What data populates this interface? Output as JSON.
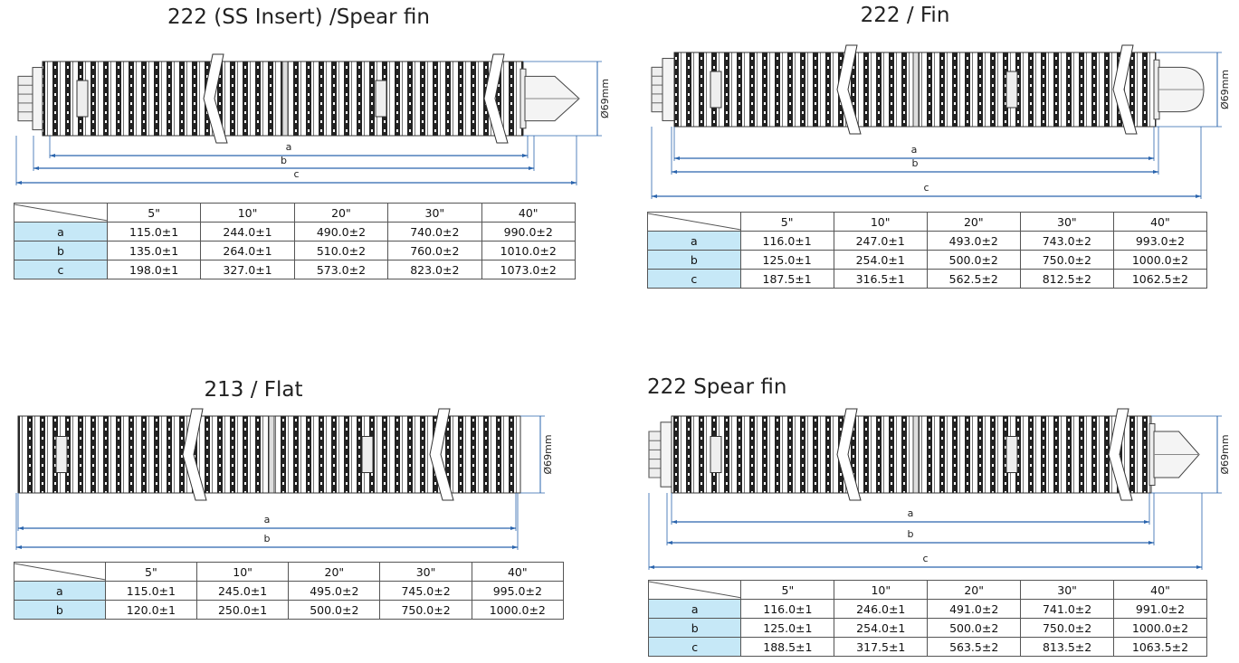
{
  "colors": {
    "dimension_line": "#2a64ad",
    "header_fill": "#c6e8f7",
    "border": "#555555"
  },
  "diameter_label": "Ø69mm",
  "panels": [
    {
      "title": "222 (SS Insert) /Spear fin",
      "end_type": "spear",
      "dimension_labels": [
        "a",
        "b",
        "c"
      ],
      "table": {
        "columns": [
          "5\"",
          "10\"",
          "20\"",
          "30\"",
          "40\""
        ],
        "rows": [
          {
            "label": "a",
            "values": [
              "115.0±1",
              "244.0±1",
              "490.0±2",
              "740.0±2",
              "990.0±2"
            ]
          },
          {
            "label": "b",
            "values": [
              "135.0±1",
              "264.0±1",
              "510.0±2",
              "760.0±2",
              "1010.0±2"
            ]
          },
          {
            "label": "c",
            "values": [
              "198.0±1",
              "327.0±1",
              "573.0±2",
              "823.0±2",
              "1073.0±2"
            ]
          }
        ]
      }
    },
    {
      "title": "222 / Fin",
      "end_type": "fin",
      "dimension_labels": [
        "a",
        "b",
        "c"
      ],
      "table": {
        "columns": [
          "5\"",
          "10\"",
          "20\"",
          "30\"",
          "40\""
        ],
        "rows": [
          {
            "label": "a",
            "values": [
              "116.0±1",
              "247.0±1",
              "493.0±2",
              "743.0±2",
              "993.0±2"
            ]
          },
          {
            "label": "b",
            "values": [
              "125.0±1",
              "254.0±1",
              "500.0±2",
              "750.0±2",
              "1000.0±2"
            ]
          },
          {
            "label": "c",
            "values": [
              "187.5±1",
              "316.5±1",
              "562.5±2",
              "812.5±2",
              "1062.5±2"
            ]
          }
        ]
      }
    },
    {
      "title": "213 / Flat",
      "end_type": "flat",
      "dimension_labels": [
        "a",
        "b"
      ],
      "table": {
        "columns": [
          "5\"",
          "10\"",
          "20\"",
          "30\"",
          "40\""
        ],
        "rows": [
          {
            "label": "a",
            "values": [
              "115.0±1",
              "245.0±1",
              "495.0±2",
              "745.0±2",
              "995.0±2"
            ]
          },
          {
            "label": "b",
            "values": [
              "120.0±1",
              "250.0±1",
              "500.0±2",
              "750.0±2",
              "1000.0±2"
            ]
          }
        ]
      }
    },
    {
      "title": "222 Spear fin",
      "end_type": "spear",
      "dimension_labels": [
        "a",
        "b",
        "c"
      ],
      "table": {
        "columns": [
          "5\"",
          "10\"",
          "20\"",
          "30\"",
          "40\""
        ],
        "rows": [
          {
            "label": "a",
            "values": [
              "116.0±1",
              "246.0±1",
              "491.0±2",
              "741.0±2",
              "991.0±2"
            ]
          },
          {
            "label": "b",
            "values": [
              "125.0±1",
              "254.0±1",
              "500.0±2",
              "750.0±2",
              "1000.0±2"
            ]
          },
          {
            "label": "c",
            "values": [
              "188.5±1",
              "317.5±1",
              "563.5±2",
              "813.5±2",
              "1063.5±2"
            ]
          }
        ]
      }
    }
  ]
}
